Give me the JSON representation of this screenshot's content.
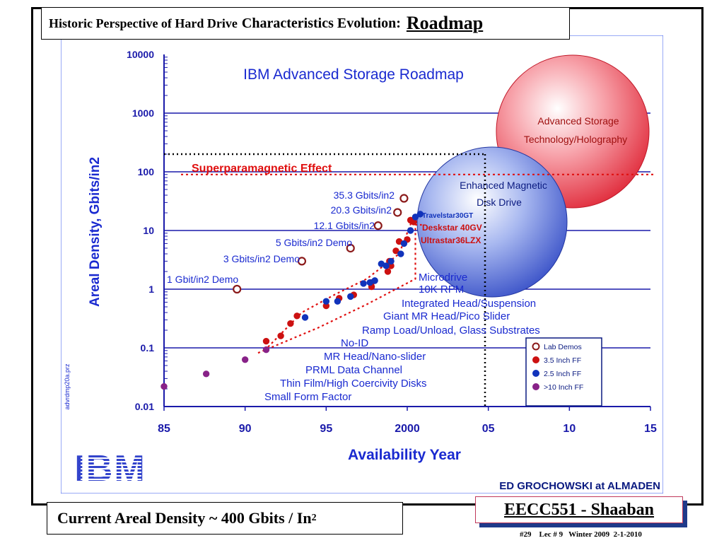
{
  "slide": {
    "title_part1": "Historic Perspective of Hard Drive",
    "title_part2": "Characteristics Evolution:",
    "title_part3": "Roadmap",
    "current_density_main": "Current Areal Density  ~ 400 Gbits / In",
    "current_density_sup": "2",
    "course": "EECC551 - Shaaban",
    "footer": "#29    Lec # 9   Winter 2009  2-1-2010"
  },
  "chart_data": {
    "type": "scatter",
    "title": "IBM Advanced Storage Roadmap",
    "xlabel": "Availability Year",
    "ylabel": "Areal Density, Gbits/in2",
    "y_scale": "log",
    "xlim": [
      1985,
      2015
    ],
    "ylim": [
      0.01,
      10000
    ],
    "x_ticks": [
      "85",
      "90",
      "95",
      "2000",
      "05",
      "10",
      "15"
    ],
    "y_ticks": [
      "10000",
      "1000",
      "100",
      "10",
      "1",
      "0.1",
      "0.01"
    ],
    "credit": "ED GROCHOWSKI at ALMADEN",
    "file_tag": "advrdmp20a.prz",
    "logo": "IBM",
    "legend_position": "bottom-right",
    "legend": [
      {
        "label": "Lab Demos",
        "color": "#8b1a1a",
        "style": "hollow"
      },
      {
        "label": "3.5 Inch FF",
        "color": "#cc1111",
        "style": "filled"
      },
      {
        "label": "2.5 Inch FF",
        "color": "#1133bb",
        "style": "filled"
      },
      {
        "label": ">10 Inch FF",
        "color": "#882288",
        "style": "filled"
      }
    ],
    "series": [
      {
        "name": "Lab Demos",
        "points": [
          [
            1989.5,
            1
          ],
          [
            1993.5,
            3
          ],
          [
            1996.5,
            5
          ],
          [
            1998.2,
            12.1
          ],
          [
            1999.4,
            20.3
          ],
          [
            1999.8,
            35.3
          ]
        ]
      },
      {
        "name": "3.5 Inch FF",
        "points": [
          [
            1991.3,
            0.13
          ],
          [
            1992.2,
            0.16
          ],
          [
            1992.8,
            0.26
          ],
          [
            1993.2,
            0.35
          ],
          [
            1995.0,
            0.52
          ],
          [
            1995.8,
            0.7
          ],
          [
            1996.7,
            0.8
          ],
          [
            1997.8,
            1.3
          ],
          [
            1997.8,
            1.1
          ],
          [
            1998.8,
            2.0
          ],
          [
            1998.9,
            3.0
          ],
          [
            1999.0,
            2.5
          ],
          [
            1999.3,
            4.5
          ],
          [
            1999.5,
            6.5
          ],
          [
            2000.0,
            7.0
          ],
          [
            2000.2,
            15
          ],
          [
            2000.4,
            14
          ]
        ]
      },
      {
        "name": "2.5 Inch FF",
        "points": [
          [
            1993.7,
            0.33
          ],
          [
            1995.0,
            0.62
          ],
          [
            1995.7,
            0.62
          ],
          [
            1996.5,
            0.75
          ],
          [
            1997.3,
            1.25
          ],
          [
            1997.7,
            1.3
          ],
          [
            1998.0,
            1.4
          ],
          [
            1998.4,
            2.7
          ],
          [
            1998.7,
            2.5
          ],
          [
            1999.0,
            3.0
          ],
          [
            1999.6,
            4.0
          ],
          [
            1999.8,
            6.0
          ],
          [
            2000.2,
            10
          ],
          [
            2000.5,
            17
          ],
          [
            2000.8,
            19
          ]
        ]
      },
      {
        "name": ">10 Inch FF",
        "points": [
          [
            1985.0,
            0.022
          ],
          [
            1987.6,
            0.036
          ],
          [
            1990.0,
            0.063
          ],
          [
            1991.3,
            0.093
          ]
        ]
      }
    ],
    "demo_labels": [
      {
        "text": "35.3 Gbits/in2",
        "x": 1999.8,
        "y": 35.3
      },
      {
        "text": "20.3 Gbits/in2",
        "x": 1999.4,
        "y": 20.3
      },
      {
        "text": "12.1 Gbits/in2",
        "x": 1998.2,
        "y": 12.1
      },
      {
        "text": "5 Gbits/in2 Demo",
        "x": 1996.5,
        "y": 5
      },
      {
        "text": "3 Gbits/in2 Demo",
        "x": 1993.5,
        "y": 3
      },
      {
        "text": "1 Gbit/in2 Demo",
        "x": 1989.5,
        "y": 1
      }
    ],
    "product_labels": [
      {
        "text": "Travelstar30GT",
        "color": "#1133bb"
      },
      {
        "text": "Deskstar 40GV",
        "color": "#cc1111"
      },
      {
        "text": "Ultrastar36LZX",
        "color": "#cc1111"
      }
    ],
    "technologies": [
      "Microdrive",
      "10K RPM",
      "Integrated Head/Suspension",
      "Giant MR Head/Pico Slider",
      "Ramp Load/Unload, Glass Substrates",
      "No-ID",
      "MR Head/Nano-slider",
      "PRML Data Channel",
      "Thin Film/High Coercivity Disks",
      "Small Form Factor"
    ],
    "superparamagnetic_label": "Superparamagnetic Effect",
    "superparamagnetic_limit": 90,
    "bubbles": [
      {
        "lines": [
          "Advanced Storage",
          "Technology/Holography"
        ],
        "color": "#e03040"
      },
      {
        "lines": [
          "Enhanced Magnetic",
          "Disk Drive"
        ],
        "color": "#4466cc"
      }
    ],
    "grid": true,
    "colors": {
      "axis": "#1a1aaa",
      "text": "#1a2ad0",
      "red": "#e01010",
      "background": "#ffffff"
    }
  }
}
